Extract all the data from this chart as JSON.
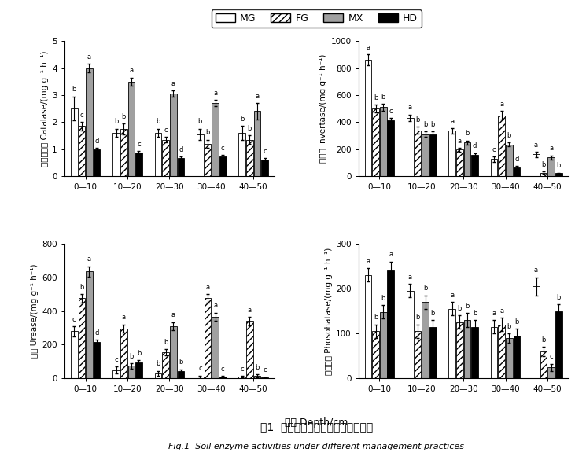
{
  "categories": [
    "0—10",
    "10—20",
    "20—30",
    "30—40",
    "40—50"
  ],
  "legend_labels": [
    "MG",
    "FG",
    "MX",
    "HD"
  ],
  "bar_colors": [
    "white",
    "white",
    "#a0a0a0",
    "black"
  ],
  "bar_hatches": [
    "",
    "////",
    "",
    ""
  ],
  "catalase": {
    "ylabel_cn": "过氧化氢酶 Catalase",
    "ylabel_unit": "/(mg g⁻¹ h⁻¹)",
    "ylim": [
      0,
      5
    ],
    "yticks": [
      0,
      1,
      2,
      3,
      4,
      5
    ],
    "values": [
      [
        2.5,
        1.6,
        1.6,
        1.55,
        1.6
      ],
      [
        1.85,
        1.75,
        1.35,
        1.2,
        1.35
      ],
      [
        4.0,
        3.5,
        3.05,
        2.7,
        2.4
      ],
      [
        1.0,
        0.88,
        0.68,
        0.72,
        0.62
      ]
    ],
    "errors": [
      [
        0.45,
        0.15,
        0.15,
        0.2,
        0.25
      ],
      [
        0.15,
        0.2,
        0.1,
        0.15,
        0.15
      ],
      [
        0.15,
        0.15,
        0.12,
        0.12,
        0.3
      ],
      [
        0.05,
        0.05,
        0.05,
        0.05,
        0.04
      ]
    ],
    "letters": [
      [
        "b",
        "b",
        "b",
        "b",
        "b"
      ],
      [
        "c",
        "b",
        "c",
        "b",
        "b"
      ],
      [
        "a",
        "a",
        "a",
        "a",
        "a"
      ],
      [
        "d",
        "c",
        "d",
        "c",
        "c"
      ]
    ]
  },
  "invertase": {
    "ylabel_cn": "蔗糖酶 Invertase",
    "ylabel_unit": "/(mg g⁻¹ h⁻¹)",
    "ylim": [
      0,
      1000
    ],
    "yticks": [
      0,
      200,
      400,
      600,
      800,
      1000
    ],
    "values": [
      [
        860,
        430,
        335,
        125,
        160
      ],
      [
        500,
        340,
        195,
        450,
        25
      ],
      [
        510,
        310,
        248,
        235,
        138
      ],
      [
        410,
        310,
        155,
        65,
        20
      ]
    ],
    "errors": [
      [
        40,
        25,
        20,
        20,
        20
      ],
      [
        30,
        25,
        15,
        30,
        10
      ],
      [
        25,
        20,
        15,
        15,
        15
      ],
      [
        20,
        20,
        15,
        10,
        5
      ]
    ],
    "letters": [
      [
        "a",
        "a",
        "a",
        "c",
        "a"
      ],
      [
        "b",
        "b",
        "a",
        "a",
        "b"
      ],
      [
        "b",
        "b",
        "b",
        "b",
        "a"
      ],
      [
        "c",
        "b",
        "d",
        "d",
        "b"
      ]
    ]
  },
  "urease": {
    "ylabel_cn": "脈酶 Urease",
    "ylabel_unit": "/(mg g⁻¹ h⁻¹)",
    "ylim": [
      0,
      800
    ],
    "yticks": [
      0,
      200,
      400,
      600,
      800
    ],
    "values": [
      [
        280,
        50,
        30,
        10,
        10
      ],
      [
        475,
        295,
        155,
        475,
        340
      ],
      [
        635,
        75,
        310,
        365,
        15
      ],
      [
        215,
        95,
        45,
        10,
        5
      ]
    ],
    "errors": [
      [
        30,
        20,
        15,
        8,
        5
      ],
      [
        25,
        25,
        20,
        25,
        25
      ],
      [
        30,
        15,
        25,
        25,
        10
      ],
      [
        15,
        15,
        10,
        5,
        3
      ]
    ],
    "letters": [
      [
        "c",
        "c",
        "b",
        "c",
        "c"
      ],
      [
        "b",
        "a",
        "b",
        "a",
        "a"
      ],
      [
        "a",
        "b",
        "a",
        "a",
        "b"
      ],
      [
        "d",
        "b",
        "b",
        "c",
        "c"
      ]
    ]
  },
  "phosphatase": {
    "ylabel_cn": "磷酸酶酶 Phosohatase",
    "ylabel_unit": "/(mg g⁻¹ h⁻¹)",
    "ylim": [
      0,
      300
    ],
    "yticks": [
      0,
      100,
      200,
      300
    ],
    "values": [
      [
        230,
        195,
        155,
        115,
        205
      ],
      [
        105,
        105,
        125,
        120,
        60
      ],
      [
        148,
        170,
        130,
        90,
        25
      ],
      [
        240,
        115,
        115,
        95,
        150
      ]
    ],
    "errors": [
      [
        15,
        15,
        15,
        15,
        20
      ],
      [
        15,
        15,
        15,
        15,
        10
      ],
      [
        15,
        15,
        15,
        10,
        8
      ],
      [
        20,
        15,
        15,
        15,
        15
      ]
    ],
    "letters": [
      [
        "a",
        "a",
        "a",
        "a",
        "a"
      ],
      [
        "b",
        "b",
        "b",
        "a",
        "b"
      ],
      [
        "b",
        "b",
        "b",
        "b",
        "c"
      ],
      [
        "a",
        "b",
        "b",
        "b",
        "b"
      ]
    ]
  },
  "xlabel": "深度 Depth/cm",
  "title_cn": "图1  不同土地管理方式下土壤酶活性",
  "title_en": "Fig.1  Soil enzyme activities under different management practices"
}
